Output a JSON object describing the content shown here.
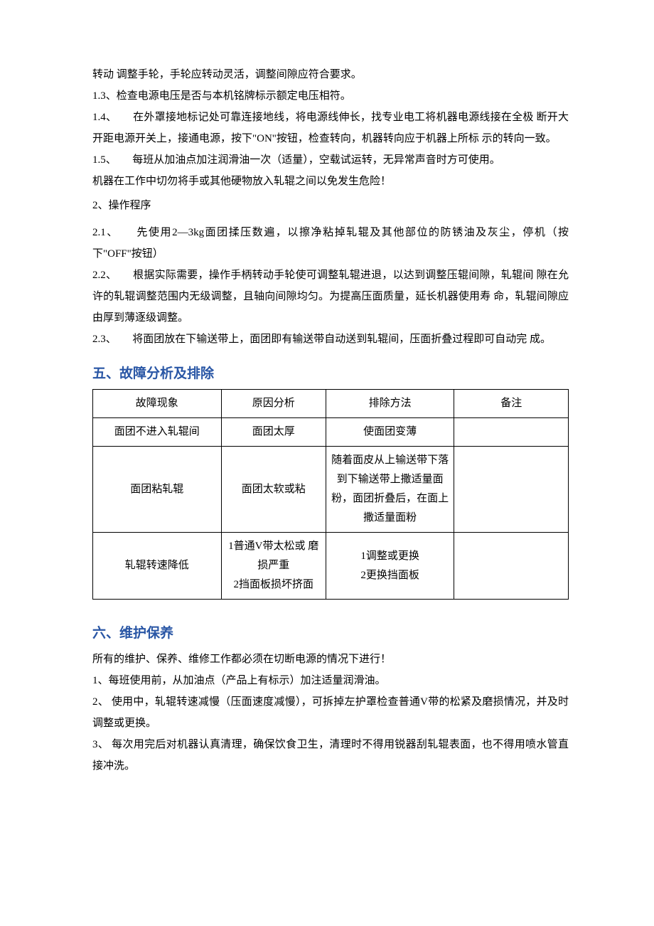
{
  "paragraphs": {
    "p1": "转动 调整手轮，手轮应转动灵活，调整间隙应符合要求。",
    "p2": "1.3、检查电源电压是否与本机铭牌标示额定电压相符。",
    "p3": "1.4、　　在外罩接地标记处可靠连接地线，将电源线伸长，找专业电工将机器电源线接在全极 断开大开距电源开关上，接通电源，按下\"ON\"按钮，检查转向，机器转向应于机器上所标 示的转向一致。",
    "p4": "1.5、　　每班从加油点加注润滑油一次（适量），空载试运转，无异常声音时方可使用。",
    "p5": "机器在工作中切勿将手或其他硬物放入轧辊之间以免发生危险！",
    "p6": "2、操作程序",
    "p7": "2.1、　　先使用2—3kg面团揉压数遍，以擦净粘掉轧辊及其他部位的防锈油及灰尘，停机（按 下\"OFF\"按钮）",
    "p8": "2.2、　　根据实际需要，操作手柄转动手轮使可调整轧辊进退，以达到调整压辊间隙，轧辊间 隙在允许的轧辊调整范围内无级调整，且轴向间隙均匀。为提高压面质量，延长机器使用寿 命，轧辊间隙应由厚到薄逐级调整。",
    "p9": "2.3、　　将面团放在下输送带上，面团即有输送带自动送到轧辊间，压面折叠过程即可自动完 成。"
  },
  "heading5": "五、故障分析及排除",
  "table": {
    "headers": [
      "故障现象",
      "原因分析",
      "排除方法",
      "备注"
    ],
    "rows": [
      {
        "c1": "面团不进入轧辊间",
        "c2": "面团太厚",
        "c3": "使面团变薄",
        "c4": ""
      },
      {
        "c1": "面团粘轧辊",
        "c2": "面团太软或粘",
        "c3": "随着面皮从上输送带下落到下输送带上撒适量面粉，面团折叠后，在面上撒适量面粉",
        "c4": ""
      },
      {
        "c1": "轧辊转速降低",
        "c2": "1普通V带太松或 磨损严重\n2挡面板损坏挤面",
        "c3": "1调整或更换\n2更换挡面板",
        "c4": ""
      }
    ]
  },
  "heading6": "六、维护保养",
  "section6": {
    "p1": "所有的维护、保养、维修工作都必须在切断电源的情况下进行！",
    "p2": "1、每班使用前，从加油点（产品上有标示）加注适量润滑油。",
    "p3": "2、 使用中，轧辊转速减慢（压面速度减慢），可拆掉左护罩检查普通V带的松紧及磨损情况，并及时调整或更换。",
    "p4": "3、 每次用完后对机器认真清理，确保饮食卫生，清理时不得用锐器刮轧辊表面，也不得用喷水管直接冲洗。"
  },
  "styles": {
    "body_font_size": 15,
    "heading_font_size": 19,
    "heading_color": "#2956a5",
    "text_color": "#000000",
    "background_color": "#ffffff",
    "border_color": "#000000",
    "line_height": 2
  }
}
